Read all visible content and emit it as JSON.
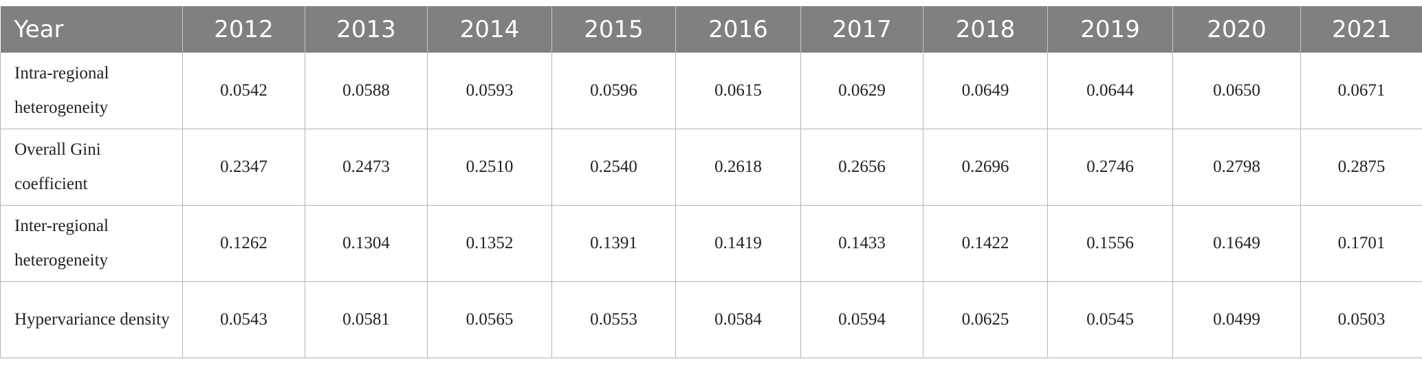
{
  "table": {
    "headers": [
      "Year",
      "2012",
      "2013",
      "2014",
      "2015",
      "2016",
      "2017",
      "2018",
      "2019",
      "2020",
      "2021"
    ],
    "rows": [
      {
        "label": "Intra-regional heterogeneity",
        "values": [
          "0.0542",
          "0.0588",
          "0.0593",
          "0.0596",
          "0.0615",
          "0.0629",
          "0.0649",
          "0.0644",
          "0.0650",
          "0.0671"
        ]
      },
      {
        "label": "Overall Gini coefficient",
        "values": [
          "0.2347",
          "0.2473",
          "0.2510",
          "0.2540",
          "0.2618",
          "0.2656",
          "0.2696",
          "0.2746",
          "0.2798",
          "0.2875"
        ]
      },
      {
        "label": "Inter-regional heterogeneity",
        "values": [
          "0.1262",
          "0.1304",
          "0.1352",
          "0.1391",
          "0.1419",
          "0.1433",
          "0.1422",
          "0.1556",
          "0.1649",
          "0.1701"
        ]
      },
      {
        "label": "Hypervariance density",
        "values": [
          "0.0543",
          "0.0581",
          "0.0565",
          "0.0553",
          "0.0584",
          "0.0594",
          "0.0625",
          "0.0545",
          "0.0499",
          "0.0503"
        ]
      }
    ]
  },
  "colors": {
    "header_background": "#808080",
    "header_text": "#ffffff",
    "grid_line": "#b4b4b4"
  }
}
